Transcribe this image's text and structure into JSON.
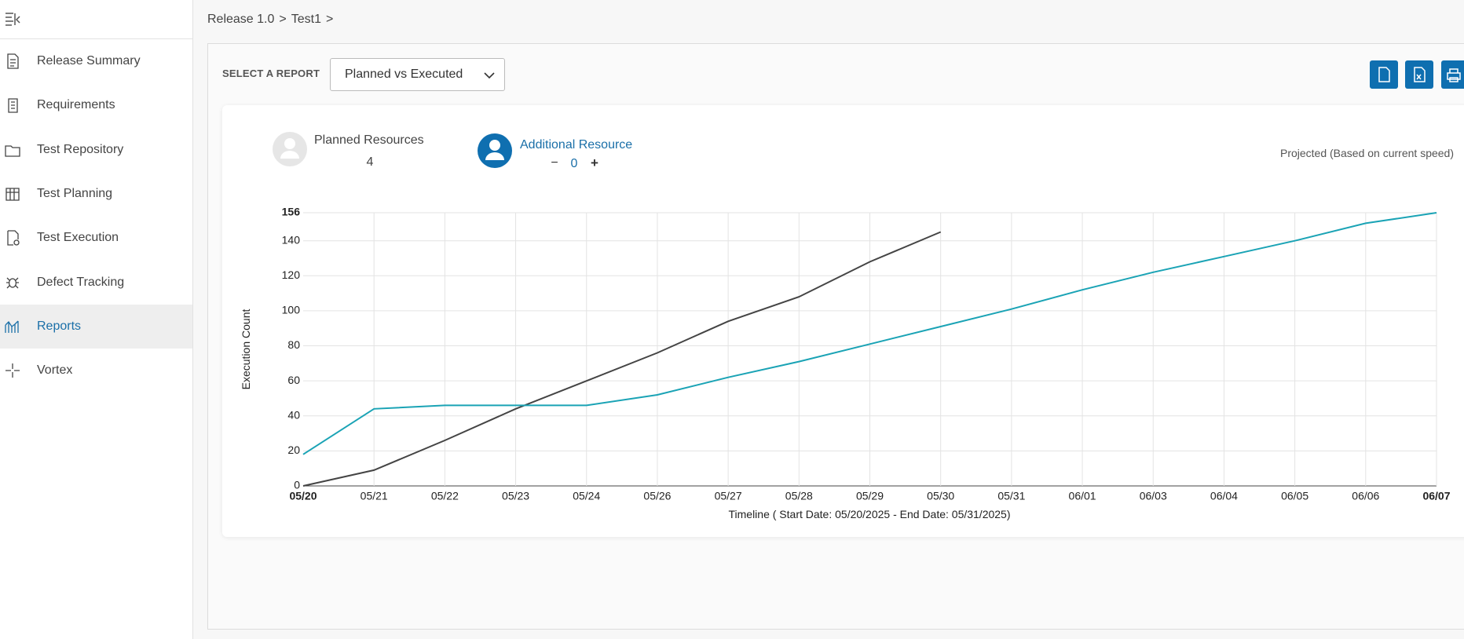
{
  "sidebar": {
    "items": [
      "Release Summary",
      "Requirements",
      "Test Repository",
      "Test Planning",
      "Test Execution",
      "Defect Tracking",
      "Reports",
      "Vortex"
    ],
    "active": 6
  },
  "breadcrumb": {
    "items": [
      "Release 1.0",
      "Test1"
    ],
    "separator": ">"
  },
  "report_selector": {
    "label": "SELECT A REPORT",
    "value": "Planned vs Executed"
  },
  "resources": {
    "planned_label": "Planned Resources",
    "planned_count": 4,
    "additional_label": "Additional Resource",
    "decrement": "−",
    "additional_count": 0,
    "increment": "+",
    "projection_note": "Projected (Based on current speed)"
  },
  "chart_data": {
    "type": "line",
    "ylabel": "Execution Count",
    "xlabel": "Timeline ( Start Date: 05/20/2025 - End Date: 05/31/2025)",
    "categories": [
      "05/20",
      "05/21",
      "05/22",
      "05/23",
      "05/24",
      "05/26",
      "05/27",
      "05/28",
      "05/29",
      "05/30",
      "05/31",
      "06/01",
      "06/03",
      "06/04",
      "06/05",
      "06/06",
      "06/07"
    ],
    "series": [
      {
        "color": "#444444",
        "values": [
          0,
          9,
          26,
          44,
          60,
          76,
          94,
          108,
          128,
          145,
          null,
          null,
          null,
          null,
          null,
          null,
          null
        ]
      },
      {
        "color": "#1aa3b5",
        "values": [
          18,
          44,
          46,
          46,
          46,
          52,
          62,
          71,
          81,
          91,
          101,
          112,
          122,
          131,
          140,
          150,
          156
        ]
      }
    ],
    "ylim": [
      0,
      156
    ],
    "yticks": [
      0,
      20,
      40,
      60,
      80,
      100,
      120,
      140,
      156
    ],
    "grid": true
  }
}
